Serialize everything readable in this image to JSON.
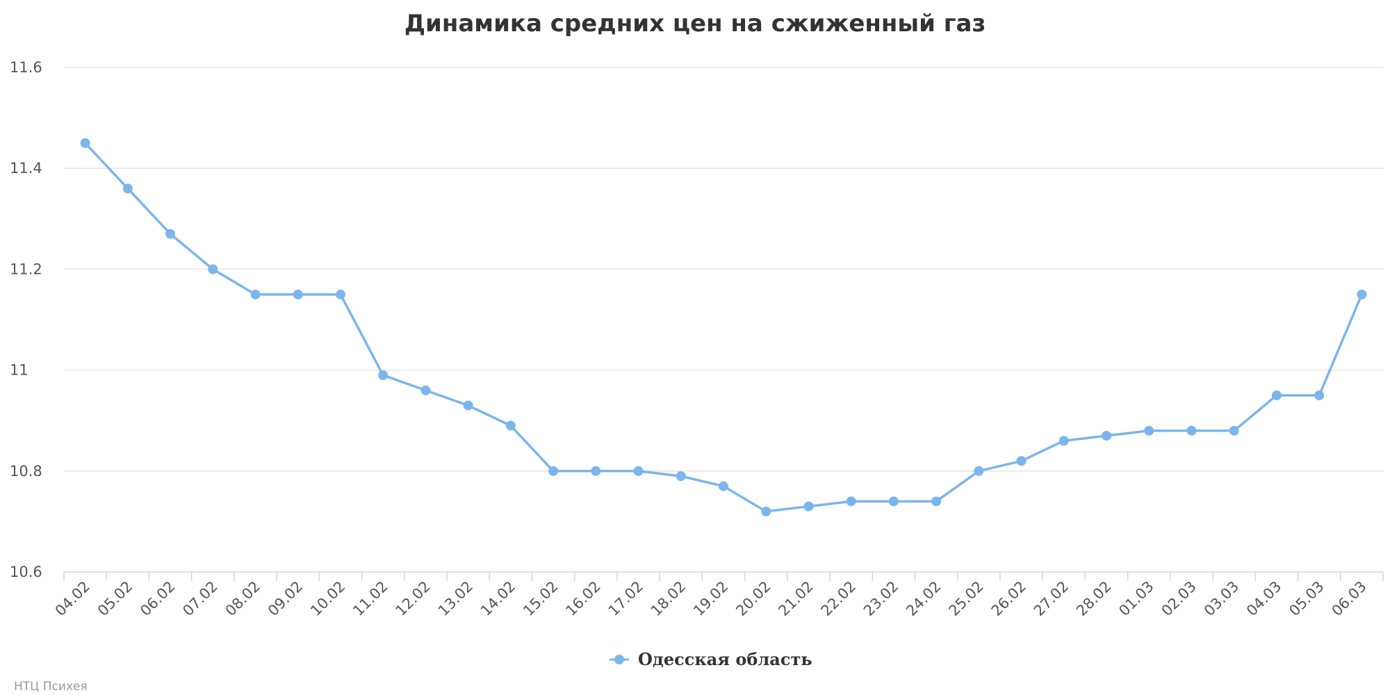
{
  "chart_data": {
    "type": "line",
    "title": "Динамика средних цен на сжиженный газ",
    "xlabel": "",
    "ylabel": "",
    "categories": [
      "04.02",
      "05.02",
      "06.02",
      "07.02",
      "08.02",
      "09.02",
      "10.02",
      "11.02",
      "12.02",
      "13.02",
      "14.02",
      "15.02",
      "16.02",
      "17.02",
      "18.02",
      "19.02",
      "20.02",
      "21.02",
      "22.02",
      "23.02",
      "24.02",
      "25.02",
      "26.02",
      "27.02",
      "28.02",
      "01.03",
      "02.03",
      "03.03",
      "04.03",
      "05.03",
      "06.03"
    ],
    "series": [
      {
        "name": "Одесская область",
        "color": "#7cb5ec",
        "values": [
          11.45,
          11.36,
          11.27,
          11.2,
          11.15,
          11.15,
          11.15,
          10.99,
          10.96,
          10.93,
          10.89,
          10.8,
          10.8,
          10.8,
          10.79,
          10.77,
          10.72,
          10.73,
          10.74,
          10.74,
          10.74,
          10.8,
          10.82,
          10.86,
          10.87,
          10.88,
          10.88,
          10.88,
          10.95,
          10.95,
          11.15
        ]
      }
    ],
    "ylim": [
      10.6,
      11.6
    ],
    "yticks": [
      "10.6",
      "10.8",
      "11",
      "11.2",
      "11.4",
      "11.6"
    ],
    "grid": true,
    "legend": "bottom-center"
  },
  "credit": "НТЦ Психея"
}
